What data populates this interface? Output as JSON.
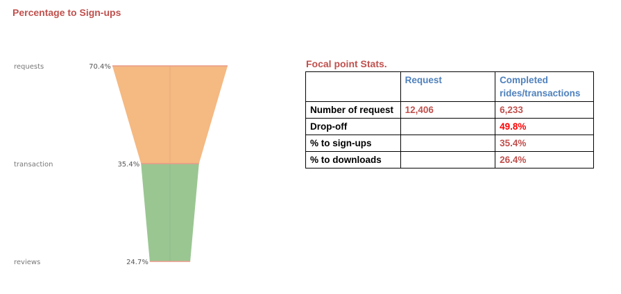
{
  "page_title": "Percentage to Sign-ups",
  "chart_data": {
    "type": "funnel",
    "stages": [
      {
        "label": "requests",
        "value": 70.4,
        "value_label": "70.4%"
      },
      {
        "label": "transaction",
        "value": 35.4,
        "value_label": "35.4%"
      },
      {
        "label": "reviews",
        "value": 24.7,
        "value_label": "24.7%"
      }
    ],
    "colors": [
      "#f5b982",
      "#9ac692"
    ],
    "edge_color": "#e89a8a"
  },
  "stats": {
    "title": "Focal point Stats.",
    "headers": [
      "",
      "Request",
      "Completed rides/transactions"
    ],
    "rows": [
      {
        "label": "Number of request",
        "request": "12,406",
        "completed": "6,233"
      },
      {
        "label": "Drop-off",
        "request": "",
        "completed": "49.8%"
      },
      {
        "label": "% to sign-ups",
        "request": "",
        "completed": "35.4%"
      },
      {
        "label": "% to downloads",
        "request": "",
        "completed": "26.4%"
      }
    ]
  }
}
